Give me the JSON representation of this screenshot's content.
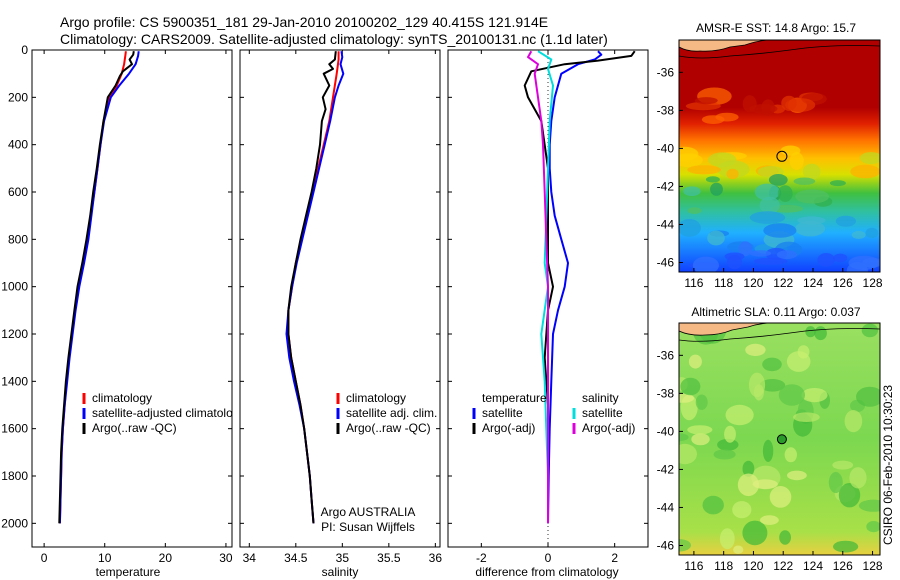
{
  "header": {
    "line1": "Argo profile: CS 5900351_181 29-Jan-2010 20100202_129 40.415S 121.914E",
    "line2": "Climatology: CARS2009. Satellite-adjusted climatology: synTS_20100131.nc (1.1d later)"
  },
  "side_label": "CSIRO 06-Feb-2010 10:30:23",
  "chart_data": [
    {
      "type": "line",
      "id": "temperature",
      "xlabel": "temperature",
      "ylabel": "",
      "xlim": [
        -2,
        31
      ],
      "ylim": [
        2100,
        0
      ],
      "xticks": [
        0,
        10,
        20,
        30
      ],
      "yticks": [
        0,
        200,
        400,
        600,
        800,
        1000,
        1200,
        1400,
        1600,
        1800,
        2000
      ],
      "legend": [
        "climatology",
        "satellite-adjusted climatolo",
        "Argo(..raw -QC)"
      ],
      "series": [
        {
          "name": "climatology",
          "color": "#ff0000",
          "points": [
            [
              13.5,
              5
            ],
            [
              13.4,
              25
            ],
            [
              13.2,
              60
            ],
            [
              12.8,
              100
            ],
            [
              12.0,
              150
            ],
            [
              10.8,
              200
            ],
            [
              9.8,
              300
            ],
            [
              9.3,
              400
            ],
            [
              8.8,
              500
            ],
            [
              8.3,
              600
            ],
            [
              7.7,
              700
            ],
            [
              7.2,
              800
            ],
            [
              6.5,
              900
            ],
            [
              5.7,
              1000
            ],
            [
              5.1,
              1100
            ],
            [
              4.6,
              1200
            ],
            [
              4.1,
              1300
            ],
            [
              3.7,
              1400
            ],
            [
              3.4,
              1500
            ],
            [
              3.1,
              1600
            ],
            [
              2.9,
              1700
            ],
            [
              2.8,
              1800
            ],
            [
              2.7,
              1900
            ],
            [
              2.6,
              2000
            ]
          ]
        },
        {
          "name": "satellite-adjusted climatolo",
          "color": "#0000ff",
          "points": [
            [
              15.6,
              5
            ],
            [
              15.5,
              25
            ],
            [
              15.1,
              60
            ],
            [
              14.0,
              100
            ],
            [
              12.4,
              150
            ],
            [
              11.0,
              200
            ],
            [
              9.9,
              300
            ],
            [
              9.3,
              400
            ],
            [
              8.8,
              500
            ],
            [
              8.3,
              600
            ],
            [
              7.8,
              700
            ],
            [
              7.3,
              800
            ],
            [
              6.6,
              900
            ],
            [
              5.8,
              1000
            ],
            [
              5.2,
              1100
            ],
            [
              4.7,
              1200
            ],
            [
              4.2,
              1300
            ],
            [
              3.8,
              1400
            ],
            [
              3.4,
              1500
            ],
            [
              3.1,
              1600
            ],
            [
              2.9,
              1700
            ],
            [
              2.8,
              1800
            ],
            [
              2.7,
              1900
            ],
            [
              2.6,
              2000
            ]
          ]
        },
        {
          "name": "Argo(..raw -QC)",
          "color": "#000000",
          "points": [
            [
              14.8,
              5
            ],
            [
              14.7,
              20
            ],
            [
              14.1,
              40
            ],
            [
              14.5,
              60
            ],
            [
              13.0,
              90
            ],
            [
              12.5,
              110
            ],
            [
              11.8,
              150
            ],
            [
              10.5,
              200
            ],
            [
              9.8,
              300
            ],
            [
              9.2,
              400
            ],
            [
              8.7,
              500
            ],
            [
              8.1,
              600
            ],
            [
              7.6,
              700
            ],
            [
              7.0,
              800
            ],
            [
              6.3,
              900
            ],
            [
              5.5,
              1000
            ],
            [
              5.0,
              1100
            ],
            [
              4.5,
              1200
            ],
            [
              4.0,
              1300
            ],
            [
              3.6,
              1400
            ],
            [
              3.3,
              1500
            ],
            [
              3.0,
              1600
            ],
            [
              2.8,
              1700
            ],
            [
              2.7,
              1800
            ],
            [
              2.6,
              1900
            ],
            [
              2.5,
              2000
            ]
          ]
        }
      ]
    },
    {
      "type": "line",
      "id": "salinity",
      "xlabel": "salinity",
      "ylabel": "",
      "xlim": [
        33.9,
        36.05
      ],
      "ylim": [
        2100,
        0
      ],
      "xticks": [
        34,
        34.5,
        35,
        35.5,
        36
      ],
      "yticks": [
        0,
        200,
        400,
        600,
        800,
        1000,
        1200,
        1400,
        1600,
        1800,
        2000
      ],
      "legend": [
        "climatology",
        "satellite adj. clim.",
        "Argo(..raw -QC)"
      ],
      "series": [
        {
          "name": "climatology",
          "color": "#ff0000",
          "points": [
            [
              34.96,
              5
            ],
            [
              34.96,
              40
            ],
            [
              34.94,
              100
            ],
            [
              34.9,
              200
            ],
            [
              34.86,
              300
            ],
            [
              34.8,
              400
            ],
            [
              34.74,
              500
            ],
            [
              34.68,
              600
            ],
            [
              34.62,
              700
            ],
            [
              34.56,
              800
            ],
            [
              34.5,
              900
            ],
            [
              34.46,
              1000
            ],
            [
              34.42,
              1100
            ],
            [
              34.42,
              1200
            ],
            [
              34.45,
              1300
            ],
            [
              34.5,
              1400
            ],
            [
              34.55,
              1500
            ],
            [
              34.59,
              1600
            ],
            [
              34.62,
              1700
            ],
            [
              34.65,
              1800
            ],
            [
              34.67,
              1900
            ],
            [
              34.69,
              2000
            ]
          ]
        },
        {
          "name": "satellite adj. clim.",
          "color": "#0000ff",
          "points": [
            [
              34.99,
              5
            ],
            [
              35.0,
              30
            ],
            [
              34.98,
              60
            ],
            [
              35.01,
              100
            ],
            [
              34.96,
              150
            ],
            [
              34.92,
              200
            ],
            [
              34.87,
              300
            ],
            [
              34.81,
              400
            ],
            [
              34.75,
              500
            ],
            [
              34.69,
              600
            ],
            [
              34.63,
              700
            ],
            [
              34.57,
              800
            ],
            [
              34.51,
              900
            ],
            [
              34.46,
              1000
            ],
            [
              34.42,
              1100
            ],
            [
              34.4,
              1200
            ],
            [
              34.43,
              1300
            ],
            [
              34.48,
              1400
            ],
            [
              34.54,
              1500
            ],
            [
              34.59,
              1600
            ],
            [
              34.62,
              1700
            ],
            [
              34.65,
              1800
            ],
            [
              34.67,
              1900
            ],
            [
              34.69,
              2000
            ]
          ]
        },
        {
          "name": "Argo(..raw -QC)",
          "color": "#000000",
          "points": [
            [
              34.93,
              5
            ],
            [
              34.92,
              40
            ],
            [
              34.86,
              60
            ],
            [
              34.9,
              80
            ],
            [
              34.8,
              100
            ],
            [
              34.86,
              150
            ],
            [
              34.79,
              200
            ],
            [
              34.82,
              250
            ],
            [
              34.78,
              300
            ],
            [
              34.76,
              400
            ],
            [
              34.72,
              500
            ],
            [
              34.67,
              600
            ],
            [
              34.61,
              700
            ],
            [
              34.55,
              800
            ],
            [
              34.5,
              900
            ],
            [
              34.45,
              1000
            ],
            [
              34.42,
              1100
            ],
            [
              34.42,
              1200
            ],
            [
              34.45,
              1300
            ],
            [
              34.5,
              1400
            ],
            [
              34.55,
              1500
            ],
            [
              34.59,
              1600
            ],
            [
              34.62,
              1700
            ],
            [
              34.65,
              1800
            ],
            [
              34.67,
              1900
            ],
            [
              34.69,
              2000
            ]
          ]
        }
      ],
      "annotations": [
        "Argo AUSTRALIA",
        "PI: Susan Wijffels"
      ]
    },
    {
      "type": "line",
      "id": "difference",
      "xlabel": "difference from climatology",
      "ylabel": "",
      "xlim": [
        -3,
        3
      ],
      "ylim": [
        2100,
        0
      ],
      "xticks": [
        -2,
        0,
        2
      ],
      "yticks": [
        0,
        200,
        400,
        600,
        800,
        1000,
        1200,
        1400,
        1600,
        1800,
        2000
      ],
      "legend_groups": [
        {
          "title": "temperature",
          "items": [
            "satellite",
            "Argo(-adj)"
          ]
        },
        {
          "title": "salinity",
          "items": [
            "satellite",
            "Argo(-adj)"
          ]
        }
      ],
      "series": [
        {
          "name": "temperature satellite",
          "color": "#0000ff",
          "points": [
            [
              1.5,
              5
            ],
            [
              1.6,
              20
            ],
            [
              1.4,
              40
            ],
            [
              0.9,
              60
            ],
            [
              0.4,
              100
            ],
            [
              0.2,
              200
            ],
            [
              0.1,
              300
            ],
            [
              0.05,
              400
            ],
            [
              0.05,
              500
            ],
            [
              0.1,
              600
            ],
            [
              0.2,
              700
            ],
            [
              0.4,
              800
            ],
            [
              0.6,
              900
            ],
            [
              0.5,
              1000
            ],
            [
              0.3,
              1100
            ],
            [
              0.15,
              1200
            ],
            [
              0.1,
              1400
            ],
            [
              0.05,
              1600
            ],
            [
              0.02,
              1800
            ],
            [
              0,
              2000
            ]
          ]
        },
        {
          "name": "temperature Argo(-adj)",
          "color": "#000000",
          "points": [
            [
              2.6,
              5
            ],
            [
              2.5,
              25
            ],
            [
              1.5,
              45
            ],
            [
              0.5,
              60
            ],
            [
              -0.5,
              90
            ],
            [
              -0.7,
              150
            ],
            [
              -0.6,
              200
            ],
            [
              -0.2,
              300
            ],
            [
              0,
              500
            ],
            [
              0,
              900
            ],
            [
              0.15,
              1000
            ],
            [
              0,
              1100
            ],
            [
              -0.1,
              1300
            ],
            [
              0,
              1500
            ],
            [
              0,
              2000
            ]
          ]
        },
        {
          "name": "salinity satellite",
          "color": "#00dddd",
          "points": [
            [
              -0.3,
              5
            ],
            [
              0.1,
              40
            ],
            [
              0,
              80
            ],
            [
              0.15,
              150
            ],
            [
              0.05,
              300
            ],
            [
              0,
              500
            ],
            [
              -0.05,
              700
            ],
            [
              -0.1,
              900
            ],
            [
              0,
              1000
            ],
            [
              -0.2,
              1200
            ],
            [
              -0.1,
              1400
            ],
            [
              -0.05,
              1600
            ],
            [
              0,
              1800
            ],
            [
              0,
              2000
            ]
          ]
        },
        {
          "name": "salinity Argo(-adj)",
          "color": "#dd00dd",
          "points": [
            [
              -0.5,
              5
            ],
            [
              -0.6,
              30
            ],
            [
              -0.3,
              60
            ],
            [
              -0.4,
              100
            ],
            [
              -0.3,
              200
            ],
            [
              -0.2,
              300
            ],
            [
              -0.15,
              400
            ],
            [
              -0.1,
              600
            ],
            [
              -0.05,
              800
            ],
            [
              0,
              1000
            ],
            [
              0,
              1200
            ],
            [
              0,
              2000
            ]
          ]
        }
      ]
    },
    {
      "type": "heatmap",
      "id": "sst",
      "title": "AMSR-E SST: 14.8 Argo: 15.7",
      "xlim": [
        115,
        128.5
      ],
      "ylim": [
        -46.5,
        -34.3
      ],
      "xticks": [
        116,
        118,
        120,
        122,
        124,
        126,
        128
      ],
      "yticks": [
        -36,
        -38,
        -40,
        -42,
        -44,
        -46
      ],
      "marker": {
        "lon": 121.914,
        "lat": -40.415
      }
    },
    {
      "type": "heatmap",
      "id": "sla",
      "title": "Altimetric SLA: 0.11 Argo: 0.037",
      "xlim": [
        115,
        128.5
      ],
      "ylim": [
        -46.5,
        -34.3
      ],
      "xticks": [
        116,
        118,
        120,
        122,
        124,
        126,
        128
      ],
      "yticks": [
        -36,
        -38,
        -40,
        -42,
        -44,
        -46
      ],
      "marker": {
        "lon": 121.914,
        "lat": -40.415
      }
    }
  ]
}
